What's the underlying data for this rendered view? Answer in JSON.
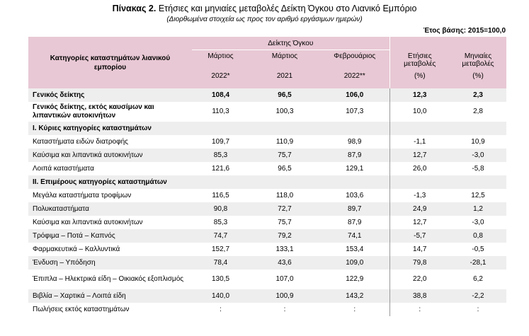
{
  "title_bold": "Πίνακας 2.",
  "title_rest": "Ετήσιες και μηνιαίες μεταβολές Δείκτη Όγκου στο Λιανικό Εμπόριο",
  "subtitle": "(Διορθωμένα στοιχεία ως προς τον αριθμό εργάσιμων ημερών)",
  "base_year": "Έτος βάσης: 2015=100,0",
  "header": {
    "category": "Κατηγορίες καταστημάτων λιανικού εμπορίου",
    "volume_index": "Δείκτης Όγκου",
    "col1_a": "Μάρτιος",
    "col1_b": "2022*",
    "col2_a": "Μάρτιος",
    "col2_b": "2021",
    "col3_a": "Φεβρουάριος",
    "col3_b": "2022**",
    "col4_a": "Ετήσιες",
    "col4_b": "μεταβολές",
    "col4_c": "(%)",
    "col5_a": "Μηνιαίες",
    "col5_b": "μεταβολές",
    "col5_c": "(%)"
  },
  "rows": [
    {
      "label": "Γενικός δείκτης",
      "v": [
        "108,4",
        "96,5",
        "106,0",
        "12,3",
        "2,3"
      ]
    },
    {
      "label": "Γενικός δείκτης, εκτός καυσίμων και λιπαντικών αυτοκινήτων",
      "v": [
        "110,3",
        "100,3",
        "107,3",
        "10,0",
        "2,8"
      ]
    },
    {
      "label": "I. Κύριες κατηγορίες καταστημάτων",
      "v": [
        "",
        "",
        "",
        "",
        ""
      ]
    },
    {
      "label": "Καταστήματα ειδών διατροφής",
      "v": [
        "109,7",
        "110,9",
        "98,9",
        "-1,1",
        "10,9"
      ]
    },
    {
      "label": "Καύσιμα και λιπαντικά αυτοκινήτων",
      "v": [
        "85,3",
        "75,7",
        "87,9",
        "12,7",
        "-3,0"
      ]
    },
    {
      "label": "Λοιπά καταστήματα",
      "v": [
        "121,6",
        "96,5",
        "129,1",
        "26,0",
        "-5,8"
      ]
    },
    {
      "label": "II. Επιμέρους κατηγορίες καταστημάτων",
      "v": [
        "",
        "",
        "",
        "",
        ""
      ]
    },
    {
      "label": "Μεγάλα καταστήματα τροφίμων",
      "v": [
        "116,5",
        "118,0",
        "103,6",
        "-1,3",
        "12,5"
      ]
    },
    {
      "label": "Πολυκαταστήματα",
      "v": [
        "90,8",
        "72,7",
        "89,7",
        "24,9",
        "1,2"
      ]
    },
    {
      "label": "Καύσιμα και λιπαντικά αυτοκινήτων",
      "v": [
        "85,3",
        "75,7",
        "87,9",
        "12,7",
        "-3,0"
      ]
    },
    {
      "label": "Τρόφιμα – Ποτά – Καπνός",
      "v": [
        "74,7",
        "79,2",
        "74,1",
        "-5,7",
        "0,8"
      ]
    },
    {
      "label": "Φαρμακευτικά – Καλλυντικά",
      "v": [
        "152,7",
        "133,1",
        "153,4",
        "14,7",
        "-0,5"
      ]
    },
    {
      "label": "Ένδυση – Υπόδηση",
      "v": [
        "78,4",
        "43,6",
        "109,0",
        "79,8",
        "-28,1"
      ]
    },
    {
      "label": "Έπιπλα – Ηλεκτρικά είδη – Οικιακός εξοπλισμός",
      "v": [
        "130,5",
        "107,0",
        "122,9",
        "22,0",
        "6,2"
      ]
    },
    {
      "label": "Βιβλία – Χαρτικά – Λοιπά είδη",
      "v": [
        "140,0",
        "100,9",
        "143,2",
        "38,8",
        "-2,2"
      ]
    },
    {
      "label": "Πωλήσεις εκτός καταστημάτων",
      "v": [
        ":",
        ":",
        ":",
        ":",
        ":"
      ]
    }
  ]
}
